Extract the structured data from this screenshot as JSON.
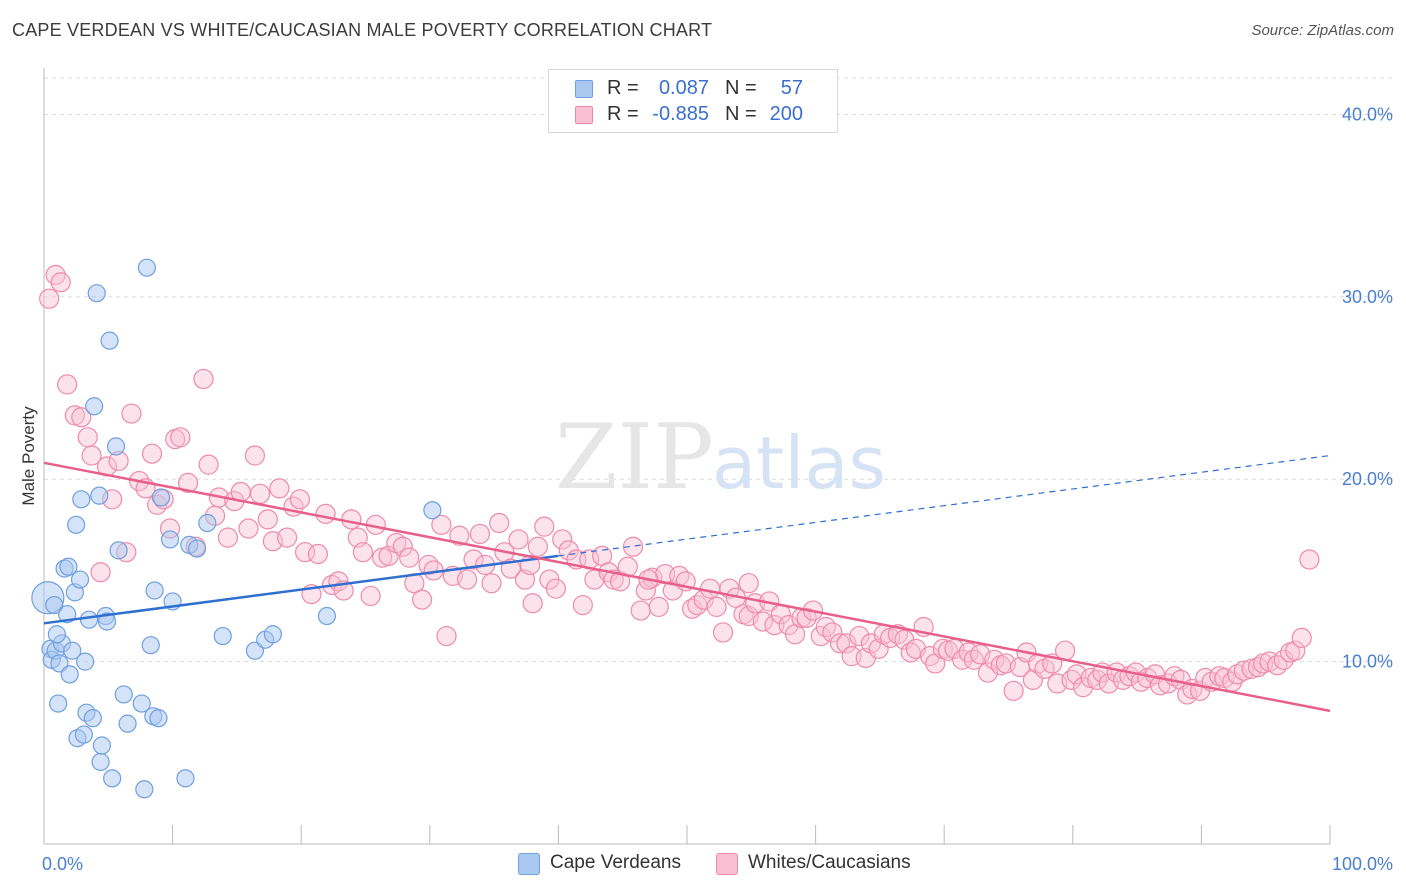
{
  "title": "CAPE VERDEAN VS WHITE/CAUCASIAN MALE POVERTY CORRELATION CHART",
  "source": "Source: ZipAtlas.com",
  "legend": {
    "rows": [
      {
        "r_label": "R =",
        "r_value": "0.087",
        "n_label": "N =",
        "n_value": "57"
      },
      {
        "r_label": "R =",
        "r_value": "-0.885",
        "n_label": "N =",
        "n_value": "200"
      }
    ]
  },
  "bottom_legend": [
    "Cape Verdeans",
    "Whites/Caucasians"
  ],
  "colors": {
    "blue_fill": "#aac8f0",
    "blue_stroke": "#6fa0e0",
    "blue_line": "#2f6fd0",
    "pink_fill": "#f8c0d2",
    "pink_stroke": "#ef8aaa",
    "pink_line": "#e8608a",
    "tick_text": "#4a7fd0",
    "grid": "#dcdcdc"
  },
  "chart_data": {
    "type": "scatter",
    "title": "CAPE VERDEAN VS WHITE/CAUCASIAN MALE POVERTY CORRELATION CHART",
    "xlabel": "",
    "ylabel": "Male Poverty",
    "xlim": [
      0,
      100
    ],
    "ylim": [
      0,
      42
    ],
    "y_ticks": [
      10,
      20,
      30,
      40
    ],
    "y_tick_labels": [
      "10.0%",
      "20.0%",
      "30.0%",
      "40.0%"
    ],
    "x_tick_labels": [
      "0.0%",
      "100.0%"
    ],
    "grid": true,
    "watermark": {
      "bold": "ZIP",
      "light": "atlas"
    },
    "series": [
      {
        "name": "Cape Verdeans",
        "r": 0.087,
        "n": 57,
        "trend": {
          "x0": 0,
          "y0": 12.1,
          "x1": 40,
          "y1": 15.8,
          "dashed_to": 100,
          "dashed_y1": 21.3
        },
        "points": [
          [
            0.3,
            13.5
          ],
          [
            0.5,
            10.7
          ],
          [
            0.6,
            10.1
          ],
          [
            0.8,
            13.1
          ],
          [
            0.9,
            10.6
          ],
          [
            1.2,
            9.9
          ],
          [
            1.1,
            7.7
          ],
          [
            1.4,
            11.0
          ],
          [
            1.6,
            15.1
          ],
          [
            1.8,
            12.6
          ],
          [
            1.9,
            15.2
          ],
          [
            2.0,
            9.3
          ],
          [
            2.2,
            10.6
          ],
          [
            2.4,
            13.8
          ],
          [
            2.5,
            17.5
          ],
          [
            2.6,
            5.8
          ],
          [
            2.8,
            14.5
          ],
          [
            2.9,
            18.9
          ],
          [
            3.1,
            6.0
          ],
          [
            3.2,
            10.0
          ],
          [
            3.3,
            7.2
          ],
          [
            3.5,
            12.3
          ],
          [
            3.8,
            6.9
          ],
          [
            4.1,
            30.2
          ],
          [
            3.9,
            24.0
          ],
          [
            4.3,
            19.1
          ],
          [
            4.4,
            4.5
          ],
          [
            4.5,
            5.4
          ],
          [
            4.8,
            12.5
          ],
          [
            4.9,
            12.2
          ],
          [
            5.1,
            27.6
          ],
          [
            5.3,
            3.6
          ],
          [
            5.6,
            21.8
          ],
          [
            5.8,
            16.1
          ],
          [
            6.2,
            8.2
          ],
          [
            6.5,
            6.6
          ],
          [
            7.6,
            7.7
          ],
          [
            7.8,
            3.0
          ],
          [
            8.0,
            31.6
          ],
          [
            8.3,
            10.9
          ],
          [
            8.5,
            7.0
          ],
          [
            8.6,
            13.9
          ],
          [
            8.9,
            6.9
          ],
          [
            9.1,
            19.0
          ],
          [
            9.8,
            16.7
          ],
          [
            10.0,
            13.3
          ],
          [
            11.0,
            3.6
          ],
          [
            11.3,
            16.4
          ],
          [
            11.9,
            16.2
          ],
          [
            12.7,
            17.6
          ],
          [
            13.9,
            11.4
          ],
          [
            16.4,
            10.6
          ],
          [
            17.2,
            11.2
          ],
          [
            17.8,
            11.5
          ],
          [
            22.0,
            12.5
          ],
          [
            30.2,
            18.3
          ],
          [
            1.0,
            11.5
          ]
        ]
      },
      {
        "name": "Whites/Caucasians",
        "r": -0.885,
        "n": 200,
        "trend": {
          "x0": 0,
          "y0": 20.9,
          "x1": 100,
          "y1": 7.3
        },
        "points": [
          [
            0.4,
            29.9
          ],
          [
            0.9,
            31.2
          ],
          [
            1.3,
            30.8
          ],
          [
            1.8,
            25.2
          ],
          [
            2.4,
            23.5
          ],
          [
            2.9,
            23.4
          ],
          [
            3.4,
            22.3
          ],
          [
            3.7,
            21.3
          ],
          [
            4.4,
            14.9
          ],
          [
            4.9,
            20.7
          ],
          [
            5.3,
            18.9
          ],
          [
            5.8,
            21.0
          ],
          [
            6.4,
            16.0
          ],
          [
            6.8,
            23.6
          ],
          [
            7.4,
            19.9
          ],
          [
            7.9,
            19.5
          ],
          [
            8.4,
            21.4
          ],
          [
            8.8,
            18.6
          ],
          [
            9.3,
            18.9
          ],
          [
            9.8,
            17.3
          ],
          [
            10.2,
            22.2
          ],
          [
            10.6,
            22.3
          ],
          [
            11.2,
            19.8
          ],
          [
            11.8,
            16.3
          ],
          [
            12.4,
            25.5
          ],
          [
            12.8,
            20.8
          ],
          [
            13.3,
            18.0
          ],
          [
            13.6,
            19.0
          ],
          [
            14.3,
            16.8
          ],
          [
            14.8,
            18.8
          ],
          [
            15.3,
            19.3
          ],
          [
            15.9,
            17.3
          ],
          [
            16.4,
            21.3
          ],
          [
            16.8,
            19.2
          ],
          [
            17.4,
            17.8
          ],
          [
            17.8,
            16.6
          ],
          [
            18.3,
            19.5
          ],
          [
            18.9,
            16.8
          ],
          [
            19.4,
            18.5
          ],
          [
            19.9,
            18.9
          ],
          [
            20.3,
            16.0
          ],
          [
            20.8,
            13.7
          ],
          [
            21.3,
            15.9
          ],
          [
            21.9,
            18.1
          ],
          [
            22.4,
            14.2
          ],
          [
            22.9,
            14.4
          ],
          [
            23.3,
            13.9
          ],
          [
            23.9,
            17.8
          ],
          [
            24.4,
            16.8
          ],
          [
            24.8,
            16.0
          ],
          [
            25.4,
            13.6
          ],
          [
            25.8,
            17.5
          ],
          [
            26.3,
            15.7
          ],
          [
            26.8,
            15.8
          ],
          [
            27.4,
            16.5
          ],
          [
            27.9,
            16.3
          ],
          [
            28.4,
            15.7
          ],
          [
            28.8,
            14.3
          ],
          [
            29.4,
            13.4
          ],
          [
            29.9,
            15.3
          ],
          [
            30.3,
            15.0
          ],
          [
            30.9,
            17.5
          ],
          [
            31.3,
            11.4
          ],
          [
            31.8,
            14.7
          ],
          [
            32.3,
            16.9
          ],
          [
            32.9,
            14.5
          ],
          [
            33.4,
            15.6
          ],
          [
            33.9,
            17.0
          ],
          [
            34.3,
            15.3
          ],
          [
            34.8,
            14.3
          ],
          [
            35.4,
            17.6
          ],
          [
            35.8,
            16.0
          ],
          [
            36.3,
            15.1
          ],
          [
            36.9,
            16.7
          ],
          [
            37.4,
            14.5
          ],
          [
            37.8,
            15.3
          ],
          [
            38.4,
            16.3
          ],
          [
            38.9,
            17.4
          ],
          [
            39.3,
            14.5
          ],
          [
            39.8,
            14.0
          ],
          [
            40.3,
            16.7
          ],
          [
            40.8,
            16.1
          ],
          [
            41.4,
            15.6
          ],
          [
            41.9,
            13.1
          ],
          [
            42.4,
            15.6
          ],
          [
            42.8,
            14.5
          ],
          [
            43.4,
            15.8
          ],
          [
            43.9,
            14.9
          ],
          [
            44.3,
            14.5
          ],
          [
            44.8,
            14.4
          ],
          [
            45.4,
            15.2
          ],
          [
            45.8,
            16.3
          ],
          [
            46.4,
            12.8
          ],
          [
            46.8,
            13.9
          ],
          [
            47.3,
            14.6
          ],
          [
            47.8,
            13.0
          ],
          [
            48.3,
            14.8
          ],
          [
            48.9,
            13.9
          ],
          [
            49.4,
            14.7
          ],
          [
            49.9,
            14.4
          ],
          [
            50.4,
            12.9
          ],
          [
            50.8,
            13.1
          ],
          [
            51.3,
            13.4
          ],
          [
            51.8,
            14.0
          ],
          [
            52.3,
            13.0
          ],
          [
            52.8,
            11.6
          ],
          [
            53.3,
            14.0
          ],
          [
            53.8,
            13.5
          ],
          [
            54.4,
            12.6
          ],
          [
            54.8,
            12.5
          ],
          [
            55.3,
            13.2
          ],
          [
            55.9,
            12.2
          ],
          [
            56.4,
            13.3
          ],
          [
            56.8,
            12.0
          ],
          [
            57.3,
            12.6
          ],
          [
            57.9,
            12.0
          ],
          [
            58.4,
            11.5
          ],
          [
            58.9,
            12.4
          ],
          [
            59.3,
            12.4
          ],
          [
            59.8,
            12.8
          ],
          [
            60.4,
            11.4
          ],
          [
            60.8,
            11.9
          ],
          [
            61.3,
            11.6
          ],
          [
            61.9,
            11.0
          ],
          [
            62.4,
            11.0
          ],
          [
            62.8,
            10.3
          ],
          [
            63.4,
            11.4
          ],
          [
            63.9,
            10.2
          ],
          [
            64.3,
            11.0
          ],
          [
            64.9,
            10.7
          ],
          [
            65.3,
            11.5
          ],
          [
            65.8,
            11.3
          ],
          [
            66.4,
            11.5
          ],
          [
            66.9,
            11.2
          ],
          [
            67.4,
            10.5
          ],
          [
            67.8,
            10.7
          ],
          [
            68.4,
            11.9
          ],
          [
            68.9,
            10.3
          ],
          [
            69.3,
            9.9
          ],
          [
            69.9,
            10.7
          ],
          [
            70.3,
            10.6
          ],
          [
            70.8,
            10.7
          ],
          [
            71.4,
            10.1
          ],
          [
            71.9,
            10.5
          ],
          [
            72.3,
            10.1
          ],
          [
            72.8,
            10.4
          ],
          [
            73.4,
            9.4
          ],
          [
            73.9,
            10.1
          ],
          [
            74.4,
            9.8
          ],
          [
            74.8,
            9.9
          ],
          [
            75.4,
            8.4
          ],
          [
            75.9,
            9.7
          ],
          [
            76.4,
            10.5
          ],
          [
            76.9,
            9.0
          ],
          [
            77.3,
            9.9
          ],
          [
            77.8,
            9.6
          ],
          [
            78.4,
            9.9
          ],
          [
            78.8,
            8.8
          ],
          [
            79.4,
            10.6
          ],
          [
            79.9,
            9.0
          ],
          [
            80.3,
            9.3
          ],
          [
            80.8,
            8.6
          ],
          [
            81.4,
            9.1
          ],
          [
            81.9,
            9.0
          ],
          [
            82.3,
            9.4
          ],
          [
            82.8,
            8.8
          ],
          [
            83.4,
            9.4
          ],
          [
            83.9,
            9.0
          ],
          [
            84.4,
            9.2
          ],
          [
            84.9,
            9.4
          ],
          [
            85.3,
            8.9
          ],
          [
            85.8,
            9.1
          ],
          [
            86.4,
            9.3
          ],
          [
            86.8,
            8.7
          ],
          [
            87.4,
            8.8
          ],
          [
            87.9,
            9.2
          ],
          [
            88.4,
            9.0
          ],
          [
            88.9,
            8.2
          ],
          [
            89.3,
            8.5
          ],
          [
            89.9,
            8.4
          ],
          [
            90.3,
            9.1
          ],
          [
            90.8,
            8.9
          ],
          [
            91.4,
            9.2
          ],
          [
            91.8,
            9.1
          ],
          [
            92.4,
            8.9
          ],
          [
            92.8,
            9.3
          ],
          [
            93.3,
            9.5
          ],
          [
            93.9,
            9.6
          ],
          [
            94.4,
            9.7
          ],
          [
            94.8,
            9.9
          ],
          [
            95.3,
            10.0
          ],
          [
            95.9,
            9.8
          ],
          [
            96.4,
            10.1
          ],
          [
            96.9,
            10.5
          ],
          [
            97.3,
            10.6
          ],
          [
            97.8,
            11.3
          ],
          [
            98.4,
            15.6
          ],
          [
            54.8,
            14.3
          ],
          [
            38.0,
            13.2
          ],
          [
            47.0,
            14.5
          ]
        ]
      }
    ]
  }
}
